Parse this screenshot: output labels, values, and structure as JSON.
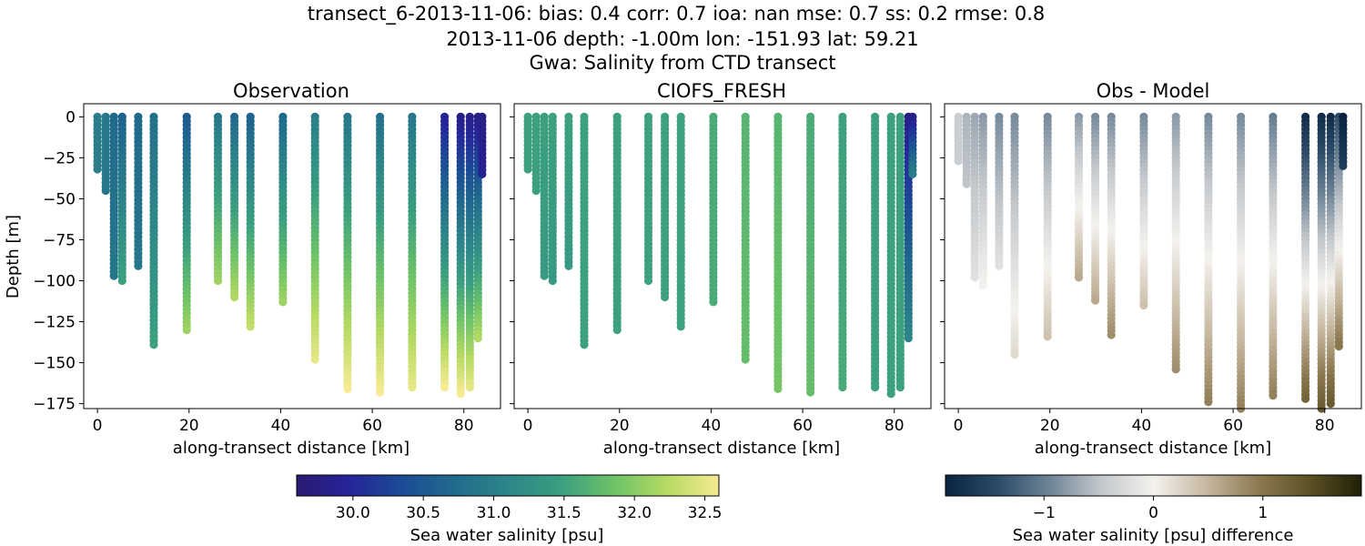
{
  "suptitle": {
    "line1": "transect_6-2013-11-06: bias: 0.4  corr: 0.7  ioa: nan  mse: 0.7  ss: 0.2  rmse: 0.8",
    "line2": "2013-11-06 depth: -1.00m lon: -151.93 lat: 59.21",
    "line3": "Gwa: Salinity from CTD transect"
  },
  "chart_data": [
    {
      "type": "scatter",
      "title": "Observation",
      "xlabel": "along-transect distance [km]",
      "ylabel": "Depth [m]",
      "xlim": [
        -3,
        88
      ],
      "ylim": [
        -178,
        8
      ],
      "xticks": [
        "0",
        "20",
        "40",
        "60",
        "80"
      ],
      "yticks": [
        "0",
        "−25",
        "−50",
        "−75",
        "−100",
        "−125",
        "−150",
        "−175"
      ],
      "colormap": "haline",
      "clim": [
        29.6,
        32.6
      ],
      "profiles": [
        {
          "x": 0,
          "max_depth": -32,
          "surf": 31.0,
          "bottom": 31.0
        },
        {
          "x": 1.8,
          "max_depth": -45,
          "surf": 30.9,
          "bottom": 30.9
        },
        {
          "x": 3.6,
          "max_depth": -97,
          "surf": 30.7,
          "bottom": 30.9
        },
        {
          "x": 5.4,
          "max_depth": -100,
          "surf": 30.6,
          "bottom": 31.5
        },
        {
          "x": 8.9,
          "max_depth": -91,
          "surf": 30.7,
          "bottom": 30.9
        },
        {
          "x": 12.3,
          "max_depth": -139,
          "surf": 30.8,
          "bottom": 31.5
        },
        {
          "x": 19.5,
          "max_depth": -130,
          "surf": 30.5,
          "bottom": 32.1
        },
        {
          "x": 26.3,
          "max_depth": -100,
          "surf": 30.9,
          "bottom": 32.1
        },
        {
          "x": 29.9,
          "max_depth": -110,
          "surf": 30.7,
          "bottom": 32.2
        },
        {
          "x": 33.4,
          "max_depth": -128,
          "surf": 30.6,
          "bottom": 32.3
        },
        {
          "x": 40.5,
          "max_depth": -113,
          "surf": 30.7,
          "bottom": 32.1
        },
        {
          "x": 47.5,
          "max_depth": -148,
          "surf": 31.0,
          "bottom": 32.5
        },
        {
          "x": 54.6,
          "max_depth": -166,
          "surf": 30.9,
          "bottom": 32.6
        },
        {
          "x": 61.7,
          "max_depth": -168,
          "surf": 30.8,
          "bottom": 32.6
        },
        {
          "x": 68.7,
          "max_depth": -165,
          "surf": 30.9,
          "bottom": 32.5
        },
        {
          "x": 75.8,
          "max_depth": -165,
          "surf": 29.9,
          "bottom": 32.6
        },
        {
          "x": 79.3,
          "max_depth": -169,
          "surf": 29.8,
          "bottom": 32.6
        },
        {
          "x": 81.3,
          "max_depth": -165,
          "surf": 29.8,
          "bottom": 32.5
        },
        {
          "x": 83.1,
          "max_depth": -135,
          "surf": 29.8,
          "bottom": 32.2
        },
        {
          "x": 84.0,
          "max_depth": -35,
          "surf": 29.8,
          "bottom": 29.9
        }
      ]
    },
    {
      "type": "scatter",
      "title": "CIOFS_FRESH",
      "xlabel": "along-transect distance [km]",
      "xlim": [
        -3,
        88
      ],
      "ylim": [
        -178,
        8
      ],
      "xticks": [
        "0",
        "20",
        "40",
        "60",
        "80"
      ],
      "colormap": "haline",
      "clim": [
        29.6,
        32.6
      ],
      "profiles": [
        {
          "x": 0,
          "max_depth": -32,
          "surf": 31.5,
          "bottom": 31.5
        },
        {
          "x": 1.8,
          "max_depth": -45,
          "surf": 31.5,
          "bottom": 31.5
        },
        {
          "x": 3.6,
          "max_depth": -97,
          "surf": 31.5,
          "bottom": 31.4
        },
        {
          "x": 5.4,
          "max_depth": -100,
          "surf": 31.5,
          "bottom": 31.4
        },
        {
          "x": 8.9,
          "max_depth": -91,
          "surf": 31.5,
          "bottom": 31.4
        },
        {
          "x": 12.3,
          "max_depth": -139,
          "surf": 31.5,
          "bottom": 31.5
        },
        {
          "x": 19.5,
          "max_depth": -130,
          "surf": 31.5,
          "bottom": 31.5
        },
        {
          "x": 26.3,
          "max_depth": -100,
          "surf": 31.5,
          "bottom": 31.5
        },
        {
          "x": 29.9,
          "max_depth": -110,
          "surf": 31.5,
          "bottom": 31.5
        },
        {
          "x": 33.4,
          "max_depth": -128,
          "surf": 31.5,
          "bottom": 31.5
        },
        {
          "x": 40.5,
          "max_depth": -113,
          "surf": 31.6,
          "bottom": 31.6
        },
        {
          "x": 47.5,
          "max_depth": -148,
          "surf": 31.7,
          "bottom": 31.8
        },
        {
          "x": 54.6,
          "max_depth": -166,
          "surf": 31.7,
          "bottom": 31.9
        },
        {
          "x": 61.7,
          "max_depth": -168,
          "surf": 31.6,
          "bottom": 31.8
        },
        {
          "x": 68.7,
          "max_depth": -165,
          "surf": 31.5,
          "bottom": 31.6
        },
        {
          "x": 75.8,
          "max_depth": -165,
          "surf": 31.5,
          "bottom": 31.5
        },
        {
          "x": 79.3,
          "max_depth": -169,
          "surf": 31.5,
          "bottom": 31.5
        },
        {
          "x": 81.3,
          "max_depth": -165,
          "surf": 31.5,
          "bottom": 31.5
        },
        {
          "x": 83.1,
          "max_depth": -135,
          "surf": 29.8,
          "bottom": 31.1
        },
        {
          "x": 84.0,
          "max_depth": -35,
          "surf": 29.8,
          "bottom": 31.0
        }
      ]
    },
    {
      "type": "scatter",
      "title": "Obs - Model",
      "xlabel": "along-transect distance [km]",
      "xlim": [
        -3,
        88
      ],
      "ylim": [
        -178,
        8
      ],
      "xticks": [
        "0",
        "20",
        "40",
        "60",
        "80"
      ],
      "colormap": "diff",
      "clim": [
        -1.9,
        1.9
      ],
      "profiles": [
        {
          "x": 0,
          "max_depth": -27,
          "surf": -0.4,
          "bottom": -0.4
        },
        {
          "x": 1.8,
          "max_depth": -41,
          "surf": -0.6,
          "bottom": -0.5
        },
        {
          "x": 3.6,
          "max_depth": -98,
          "surf": -0.7,
          "bottom": -0.2
        },
        {
          "x": 5.4,
          "max_depth": -103,
          "surf": -0.8,
          "bottom": 0.0
        },
        {
          "x": 8.9,
          "max_depth": -91,
          "surf": -0.9,
          "bottom": -0.2
        },
        {
          "x": 12.3,
          "max_depth": -145,
          "surf": -0.9,
          "bottom": 0.2
        },
        {
          "x": 19.5,
          "max_depth": -134,
          "surf": -0.9,
          "bottom": 0.4
        },
        {
          "x": 26.3,
          "max_depth": -98,
          "surf": -0.8,
          "bottom": 0.6
        },
        {
          "x": 29.9,
          "max_depth": -112,
          "surf": -0.9,
          "bottom": 0.6
        },
        {
          "x": 33.4,
          "max_depth": -133,
          "surf": -0.9,
          "bottom": 0.8
        },
        {
          "x": 40.5,
          "max_depth": -115,
          "surf": -0.9,
          "bottom": 0.4
        },
        {
          "x": 47.5,
          "max_depth": -154,
          "surf": -0.8,
          "bottom": 0.8
        },
        {
          "x": 54.6,
          "max_depth": -174,
          "surf": -0.9,
          "bottom": 0.9
        },
        {
          "x": 61.7,
          "max_depth": -178,
          "surf": -0.9,
          "bottom": 0.9
        },
        {
          "x": 68.7,
          "max_depth": -170,
          "surf": -1.0,
          "bottom": 0.9
        },
        {
          "x": 75.8,
          "max_depth": -172,
          "surf": -1.8,
          "bottom": 1.2
        },
        {
          "x": 79.3,
          "max_depth": -178,
          "surf": -1.8,
          "bottom": 1.3
        },
        {
          "x": 81.3,
          "max_depth": -175,
          "surf": -1.8,
          "bottom": 1.3
        },
        {
          "x": 83.1,
          "max_depth": -140,
          "surf": -1.4,
          "bottom": 1.0
        },
        {
          "x": 84.0,
          "max_depth": -30,
          "surf": -1.9,
          "bottom": -1.6
        }
      ]
    }
  ],
  "colorbars": [
    {
      "label": "Sea water salinity [psu]",
      "ticks": [
        30.0,
        30.5,
        31.0,
        31.5,
        32.0,
        32.5
      ],
      "tick_labels": [
        "30.0",
        "30.5",
        "31.0",
        "31.5",
        "32.0",
        "32.5"
      ],
      "range": [
        29.6,
        32.6
      ],
      "colormap": "haline"
    },
    {
      "label": "Sea water salinity [psu] difference",
      "ticks": [
        -1,
        0,
        1
      ],
      "tick_labels": [
        "−1",
        "0",
        "1"
      ],
      "range": [
        -1.9,
        1.9
      ],
      "colormap": "diff"
    }
  ],
  "colormaps": {
    "haline": [
      "#2a1a70",
      "#25249a",
      "#1b4c94",
      "#216b8c",
      "#2d8589",
      "#3a9e80",
      "#6cc268",
      "#b5da62",
      "#f6ea92"
    ],
    "diff": [
      "#0a2440",
      "#2b4a68",
      "#6e8496",
      "#c4c8cc",
      "#f4f2ee",
      "#c7b9a2",
      "#8d7a52",
      "#5c5124",
      "#202008"
    ]
  }
}
